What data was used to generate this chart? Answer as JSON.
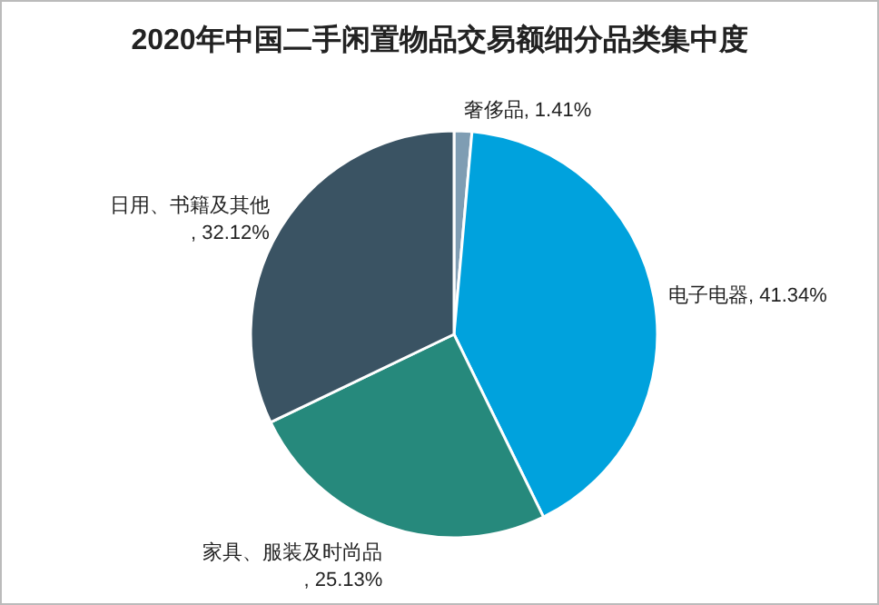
{
  "chart_data": {
    "type": "pie",
    "title": "2020年中国二手闲置物品交易额细分品类集中度",
    "categories": [
      "奢侈品",
      "电子电器",
      "家具、服装及时尚品",
      "日用、书籍及其他"
    ],
    "values": [
      1.41,
      41.34,
      25.13,
      32.12
    ],
    "colors": [
      "#7f9db3",
      "#00a2dd",
      "#26897c",
      "#3a5363"
    ],
    "value_labels": [
      ", 1.41%",
      ", 41.34%",
      ", 25.13%",
      ", 32.12%"
    ]
  }
}
